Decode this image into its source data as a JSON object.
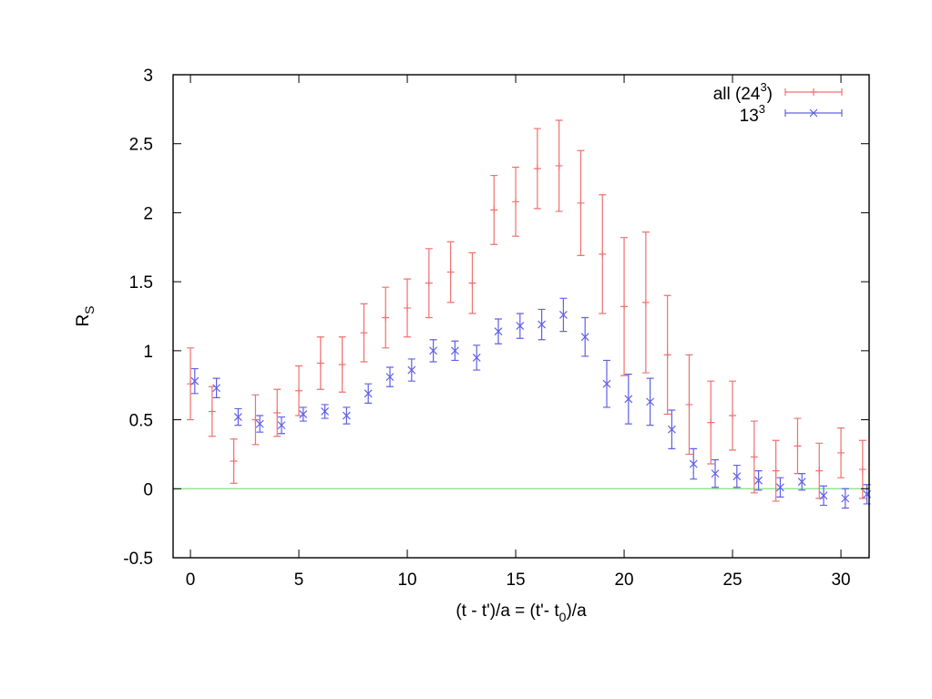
{
  "chart_data": {
    "type": "scatter",
    "title": "",
    "xlabel": "(t - t')/a = (t'- t0)/a",
    "xlabel_parts": [
      "(t - t')/a = (t'- t",
      "0",
      ")/a"
    ],
    "ylabel": "RS",
    "ylabel_parts": [
      "R",
      "S"
    ],
    "xlim": [
      -0.8,
      31.3
    ],
    "ylim": [
      -0.5,
      3
    ],
    "xticks": [
      0,
      5,
      10,
      15,
      20,
      25,
      30
    ],
    "yticks": [
      -0.5,
      0,
      0.5,
      1,
      1.5,
      2,
      2.5,
      3
    ],
    "xtick_labels": [
      "0",
      "5",
      "10",
      "15",
      "20",
      "25",
      "30"
    ],
    "ytick_labels": [
      "-0.5",
      "0",
      "0.5",
      "1",
      "1.5",
      "2",
      "2.5",
      "3"
    ],
    "grid": false,
    "legend_position": "top-right",
    "reference_line": {
      "y": 0,
      "color": "#7fe07f"
    },
    "series": [
      {
        "name": "all (24^3)",
        "name_parts": [
          "all (24",
          "3",
          ")"
        ],
        "marker": "plus",
        "color": "#f07070",
        "x": [
          0,
          1,
          2,
          3,
          4,
          5,
          6,
          7,
          8,
          9,
          10,
          11,
          12,
          13,
          14,
          15,
          16,
          17,
          18,
          19,
          20,
          21,
          22,
          23,
          24,
          25,
          26,
          27,
          28,
          29,
          30,
          31
        ],
        "y": [
          0.76,
          0.56,
          0.2,
          0.5,
          0.55,
          0.71,
          0.91,
          0.9,
          1.13,
          1.24,
          1.31,
          1.49,
          1.57,
          1.49,
          2.02,
          2.08,
          2.32,
          2.34,
          2.07,
          1.7,
          1.32,
          1.35,
          0.97,
          0.61,
          0.48,
          0.53,
          0.23,
          0.13,
          0.31,
          0.13,
          0.26,
          0.14
        ],
        "err": [
          0.26,
          0.18,
          0.16,
          0.18,
          0.17,
          0.18,
          0.19,
          0.2,
          0.21,
          0.22,
          0.21,
          0.25,
          0.22,
          0.22,
          0.25,
          0.25,
          0.29,
          0.33,
          0.38,
          0.43,
          0.5,
          0.51,
          0.43,
          0.36,
          0.3,
          0.25,
          0.26,
          0.22,
          0.2,
          0.2,
          0.18,
          0.21
        ]
      },
      {
        "name": "13^3",
        "name_parts": [
          "13",
          "3",
          ""
        ],
        "marker": "cross",
        "color": "#6060e8",
        "x": [
          0.2,
          1.2,
          2.2,
          3.2,
          4.2,
          5.2,
          6.2,
          7.2,
          8.2,
          9.2,
          10.2,
          11.2,
          12.2,
          13.2,
          14.2,
          15.2,
          16.2,
          17.2,
          18.2,
          19.2,
          20.2,
          21.2,
          22.2,
          23.2,
          24.2,
          25.2,
          26.2,
          27.2,
          28.2,
          29.2,
          30.2,
          31.2
        ],
        "y": [
          0.78,
          0.73,
          0.52,
          0.47,
          0.46,
          0.54,
          0.56,
          0.53,
          0.69,
          0.81,
          0.86,
          1.0,
          1.0,
          0.95,
          1.14,
          1.18,
          1.19,
          1.26,
          1.1,
          0.76,
          0.65,
          0.63,
          0.43,
          0.18,
          0.11,
          0.09,
          0.06,
          0.01,
          0.05,
          -0.05,
          -0.07,
          -0.04
        ],
        "err": [
          0.09,
          0.07,
          0.06,
          0.06,
          0.06,
          0.05,
          0.05,
          0.06,
          0.07,
          0.07,
          0.08,
          0.08,
          0.07,
          0.09,
          0.09,
          0.09,
          0.11,
          0.12,
          0.14,
          0.17,
          0.18,
          0.17,
          0.14,
          0.11,
          0.1,
          0.08,
          0.07,
          0.07,
          0.06,
          0.07,
          0.07,
          0.07
        ]
      }
    ]
  }
}
